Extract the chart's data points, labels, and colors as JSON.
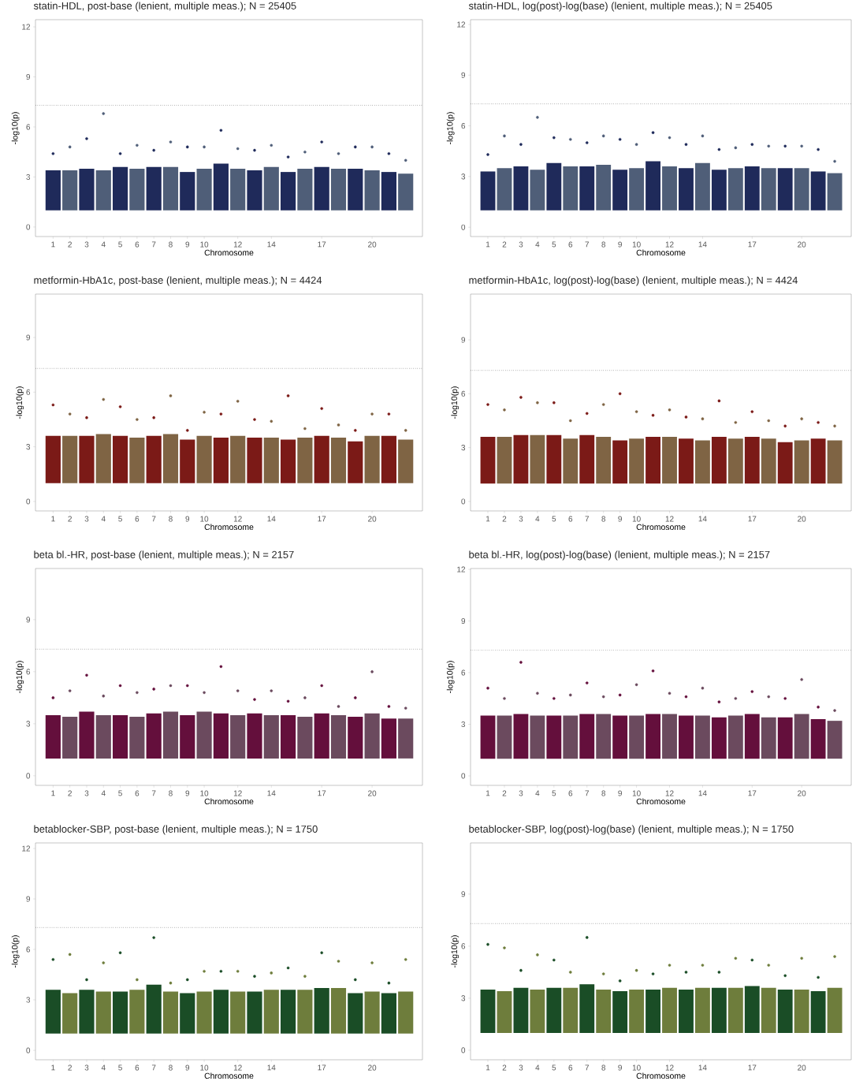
{
  "chart_data": [
    {
      "type": "bar",
      "title": "statin-HDL, post-base (lenient, multiple meas.); N = 25405",
      "xlabel": "Chromosome",
      "ylabel": "-log10(p)",
      "categories": [
        "1",
        "2",
        "3",
        "4",
        "5",
        "6",
        "7",
        "8",
        "9",
        "10",
        null,
        "12",
        null,
        "14",
        null,
        null,
        "17",
        null,
        null,
        "20",
        null,
        null
      ],
      "ylim": [
        -0.57,
        12.43
      ],
      "yticks": [
        0,
        3,
        6,
        9,
        12
      ],
      "ref_lines": [
        {
          "axis": "y",
          "value": 7.3,
          "line_style": "dotted",
          "color": "#333333"
        }
      ],
      "series": [
        {
          "type": "bar",
          "base": [
            1,
            1,
            1,
            1,
            1,
            1,
            1,
            1,
            1,
            1,
            1,
            1,
            1,
            1,
            1,
            1,
            1,
            1,
            1,
            1,
            1,
            1
          ],
          "values": [
            2.4,
            2.4,
            2.5,
            2.4,
            2.6,
            2.5,
            2.6,
            2.6,
            2.3,
            2.5,
            2.8,
            2.5,
            2.4,
            2.6,
            2.3,
            2.5,
            2.6,
            2.5,
            2.5,
            2.4,
            2.3,
            2.2
          ],
          "colors": [
            "#1f2a5a",
            "#4f5e78",
            "#1f2a5a",
            "#4f5e78",
            "#1f2a5a",
            "#4f5e78",
            "#1f2a5a",
            "#4f5e78",
            "#1f2a5a",
            "#4f5e78",
            "#1f2a5a",
            "#4f5e78",
            "#1f2a5a",
            "#4f5e78",
            "#1f2a5a",
            "#4f5e78",
            "#1f2a5a",
            "#4f5e78",
            "#1f2a5a",
            "#4f5e78",
            "#1f2a5a",
            "#4f5e78"
          ]
        },
        {
          "type": "scatter",
          "marker": "circle",
          "values": [
            4.4,
            4.8,
            5.3,
            6.8,
            4.4,
            4.9,
            4.6,
            5.1,
            4.8,
            4.8,
            5.8,
            4.7,
            4.6,
            4.9,
            4.2,
            4.5,
            5.1,
            4.4,
            4.8,
            4.8,
            4.4,
            4.0
          ],
          "colors": [
            "#1f2a5a",
            "#4f5e78",
            "#1f2a5a",
            "#4f5e78",
            "#1f2a5a",
            "#4f5e78",
            "#1f2a5a",
            "#4f5e78",
            "#1f2a5a",
            "#4f5e78",
            "#1f2a5a",
            "#4f5e78",
            "#1f2a5a",
            "#4f5e78",
            "#1f2a5a",
            "#4f5e78",
            "#1f2a5a",
            "#4f5e78",
            "#1f2a5a",
            "#4f5e78",
            "#1f2a5a",
            "#4f5e78"
          ]
        }
      ]
    },
    {
      "type": "bar",
      "title": "statin-HDL, log(post)-log(base) (lenient, multiple meas.); N = 25405",
      "xlabel": "Chromosome",
      "ylabel": "-log10(p)",
      "categories": [
        "1",
        "2",
        "3",
        "4",
        "5",
        "6",
        "7",
        "8",
        "9",
        "10",
        null,
        "12",
        null,
        "14",
        null,
        null,
        "17",
        null,
        null,
        "20",
        null,
        null
      ],
      "ylim": [
        -0.55,
        12.28
      ],
      "yticks": [
        0,
        3,
        6,
        9,
        12
      ],
      "ref_lines": [
        {
          "axis": "y",
          "value": 7.3,
          "line_style": "dotted",
          "color": "#333333"
        }
      ],
      "series": [
        {
          "type": "bar",
          "base": [
            1,
            1,
            1,
            1,
            1,
            1,
            1,
            1,
            1,
            1,
            1,
            1,
            1,
            1,
            1,
            1,
            1,
            1,
            1,
            1,
            1,
            1
          ],
          "values": [
            2.3,
            2.5,
            2.6,
            2.4,
            2.8,
            2.6,
            2.6,
            2.7,
            2.4,
            2.5,
            2.9,
            2.6,
            2.5,
            2.8,
            2.4,
            2.5,
            2.6,
            2.5,
            2.5,
            2.5,
            2.3,
            2.2
          ],
          "colors": [
            "#1f2a5a",
            "#4f5e78",
            "#1f2a5a",
            "#4f5e78",
            "#1f2a5a",
            "#4f5e78",
            "#1f2a5a",
            "#4f5e78",
            "#1f2a5a",
            "#4f5e78",
            "#1f2a5a",
            "#4f5e78",
            "#1f2a5a",
            "#4f5e78",
            "#1f2a5a",
            "#4f5e78",
            "#1f2a5a",
            "#4f5e78",
            "#1f2a5a",
            "#4f5e78",
            "#1f2a5a",
            "#4f5e78"
          ]
        },
        {
          "type": "scatter",
          "marker": "circle",
          "values": [
            4.3,
            5.4,
            4.9,
            6.5,
            5.3,
            5.2,
            5.0,
            5.4,
            5.2,
            4.9,
            5.6,
            5.3,
            4.9,
            5.4,
            4.6,
            4.7,
            4.9,
            4.8,
            4.8,
            4.8,
            4.6,
            3.9
          ],
          "colors": [
            "#1f2a5a",
            "#4f5e78",
            "#1f2a5a",
            "#4f5e78",
            "#1f2a5a",
            "#4f5e78",
            "#1f2a5a",
            "#4f5e78",
            "#1f2a5a",
            "#4f5e78",
            "#1f2a5a",
            "#4f5e78",
            "#1f2a5a",
            "#4f5e78",
            "#1f2a5a",
            "#4f5e78",
            "#1f2a5a",
            "#4f5e78",
            "#1f2a5a",
            "#4f5e78",
            "#1f2a5a",
            "#4f5e78"
          ]
        }
      ]
    },
    {
      "type": "bar",
      "title": "metformin-HbA1c, post-base (lenient, multiple meas.); N = 4424",
      "xlabel": "Chromosome",
      "ylabel": "-log10(p)",
      "categories": [
        "1",
        "2",
        "3",
        "4",
        "5",
        "6",
        "7",
        "8",
        "9",
        "10",
        null,
        "12",
        null,
        "14",
        null,
        null,
        "17",
        null,
        null,
        "20",
        null,
        null
      ],
      "ylim": [
        -0.52,
        11.38
      ],
      "yticks": [
        0,
        3,
        6,
        9
      ],
      "ref_lines": [
        {
          "axis": "y",
          "value": 7.3,
          "line_style": "dotted",
          "color": "#333333"
        }
      ],
      "series": [
        {
          "type": "bar",
          "base": [
            1,
            1,
            1,
            1,
            1,
            1,
            1,
            1,
            1,
            1,
            1,
            1,
            1,
            1,
            1,
            1,
            1,
            1,
            1,
            1,
            1,
            1
          ],
          "values": [
            2.6,
            2.6,
            2.6,
            2.7,
            2.6,
            2.5,
            2.6,
            2.7,
            2.4,
            2.6,
            2.5,
            2.6,
            2.5,
            2.5,
            2.4,
            2.5,
            2.6,
            2.5,
            2.3,
            2.6,
            2.6,
            2.4
          ],
          "colors": [
            "#7b1a17",
            "#7f6444",
            "#7b1a17",
            "#7f6444",
            "#7b1a17",
            "#7f6444",
            "#7b1a17",
            "#7f6444",
            "#7b1a17",
            "#7f6444",
            "#7b1a17",
            "#7f6444",
            "#7b1a17",
            "#7f6444",
            "#7b1a17",
            "#7f6444",
            "#7b1a17",
            "#7f6444",
            "#7b1a17",
            "#7f6444",
            "#7b1a17",
            "#7f6444"
          ]
        },
        {
          "type": "scatter",
          "marker": "circle",
          "values": [
            5.3,
            4.8,
            4.6,
            5.6,
            5.2,
            4.5,
            4.6,
            5.8,
            3.9,
            4.9,
            4.8,
            5.5,
            4.5,
            4.4,
            5.8,
            4.0,
            5.1,
            4.2,
            3.9,
            4.8,
            4.8,
            3.9
          ],
          "colors": [
            "#7b1a17",
            "#7f6444",
            "#7b1a17",
            "#7f6444",
            "#7b1a17",
            "#7f6444",
            "#7b1a17",
            "#7f6444",
            "#7b1a17",
            "#7f6444",
            "#7b1a17",
            "#7f6444",
            "#7b1a17",
            "#7f6444",
            "#7b1a17",
            "#7f6444",
            "#7b1a17",
            "#7f6444",
            "#7b1a17",
            "#7f6444",
            "#7b1a17",
            "#7f6444"
          ]
        }
      ]
    },
    {
      "type": "bar",
      "title": "metformin-HbA1c, log(post)-log(base) (lenient, multiple meas.); N = 4424",
      "xlabel": "Chromosome",
      "ylabel": "-log10(p)",
      "categories": [
        "1",
        "2",
        "3",
        "4",
        "5",
        "6",
        "7",
        "8",
        "9",
        "10",
        null,
        "12",
        null,
        "14",
        null,
        null,
        "17",
        null,
        null,
        "20",
        null,
        null
      ],
      "ylim": [
        -0.53,
        11.55
      ],
      "yticks": [
        0,
        3,
        6,
        9
      ],
      "ref_lines": [
        {
          "axis": "y",
          "value": 7.3,
          "line_style": "dotted",
          "color": "#333333"
        }
      ],
      "series": [
        {
          "type": "bar",
          "base": [
            1,
            1,
            1,
            1,
            1,
            1,
            1,
            1,
            1,
            1,
            1,
            1,
            1,
            1,
            1,
            1,
            1,
            1,
            1,
            1,
            1,
            1
          ],
          "values": [
            2.6,
            2.6,
            2.7,
            2.7,
            2.7,
            2.5,
            2.7,
            2.6,
            2.4,
            2.5,
            2.6,
            2.6,
            2.5,
            2.4,
            2.6,
            2.5,
            2.6,
            2.5,
            2.3,
            2.4,
            2.5,
            2.4
          ],
          "colors": [
            "#7b1a17",
            "#7f6444",
            "#7b1a17",
            "#7f6444",
            "#7b1a17",
            "#7f6444",
            "#7b1a17",
            "#7f6444",
            "#7b1a17",
            "#7f6444",
            "#7b1a17",
            "#7f6444",
            "#7b1a17",
            "#7f6444",
            "#7b1a17",
            "#7f6444",
            "#7b1a17",
            "#7f6444",
            "#7b1a17",
            "#7f6444",
            "#7b1a17",
            "#7f6444"
          ]
        },
        {
          "type": "scatter",
          "marker": "circle",
          "values": [
            5.4,
            5.1,
            5.8,
            5.5,
            5.5,
            4.5,
            4.9,
            5.4,
            6.0,
            5.0,
            4.8,
            5.1,
            4.7,
            4.6,
            5.6,
            4.4,
            5.0,
            4.5,
            4.2,
            4.6,
            4.4,
            4.2
          ],
          "colors": [
            "#7b1a17",
            "#7f6444",
            "#7b1a17",
            "#7f6444",
            "#7b1a17",
            "#7f6444",
            "#7b1a17",
            "#7f6444",
            "#7b1a17",
            "#7f6444",
            "#7b1a17",
            "#7f6444",
            "#7b1a17",
            "#7f6444",
            "#7b1a17",
            "#7f6444",
            "#7b1a17",
            "#7f6444",
            "#7b1a17",
            "#7f6444",
            "#7b1a17",
            "#7f6444"
          ]
        }
      ]
    },
    {
      "type": "bar",
      "title": "beta bl.-HR, post-base (lenient, multiple meas.); N = 2157",
      "xlabel": "Chromosome",
      "ylabel": "-log10(p)",
      "categories": [
        "1",
        "2",
        "3",
        "4",
        "5",
        "6",
        "7",
        "8",
        "9",
        "10",
        null,
        "12",
        null,
        "14",
        null,
        null,
        "17",
        null,
        null,
        "20",
        null,
        null
      ],
      "ylim": [
        -0.55,
        11.95
      ],
      "yticks": [
        0,
        3,
        6,
        9
      ],
      "ref_lines": [
        {
          "axis": "y",
          "value": 7.3,
          "line_style": "dotted",
          "color": "#333333"
        }
      ],
      "series": [
        {
          "type": "bar",
          "base": [
            1,
            1,
            1,
            1,
            1,
            1,
            1,
            1,
            1,
            1,
            1,
            1,
            1,
            1,
            1,
            1,
            1,
            1,
            1,
            1,
            1,
            1
          ],
          "values": [
            2.5,
            2.4,
            2.7,
            2.5,
            2.5,
            2.4,
            2.6,
            2.7,
            2.5,
            2.7,
            2.6,
            2.5,
            2.6,
            2.5,
            2.5,
            2.4,
            2.6,
            2.5,
            2.4,
            2.6,
            2.3,
            2.3
          ],
          "colors": [
            "#640f3c",
            "#6b4a5e",
            "#640f3c",
            "#6b4a5e",
            "#640f3c",
            "#6b4a5e",
            "#640f3c",
            "#6b4a5e",
            "#640f3c",
            "#6b4a5e",
            "#640f3c",
            "#6b4a5e",
            "#640f3c",
            "#6b4a5e",
            "#640f3c",
            "#6b4a5e",
            "#640f3c",
            "#6b4a5e",
            "#640f3c",
            "#6b4a5e",
            "#640f3c",
            "#6b4a5e"
          ]
        },
        {
          "type": "scatter",
          "marker": "circle",
          "values": [
            4.5,
            4.9,
            5.8,
            4.6,
            5.2,
            4.8,
            5.0,
            5.2,
            5.2,
            4.8,
            6.3,
            4.9,
            4.4,
            4.9,
            4.3,
            4.5,
            5.2,
            4.0,
            4.5,
            6.0,
            4.0,
            3.9
          ],
          "colors": [
            "#640f3c",
            "#6b4a5e",
            "#640f3c",
            "#6b4a5e",
            "#640f3c",
            "#6b4a5e",
            "#640f3c",
            "#6b4a5e",
            "#640f3c",
            "#6b4a5e",
            "#640f3c",
            "#6b4a5e",
            "#640f3c",
            "#6b4a5e",
            "#640f3c",
            "#6b4a5e",
            "#640f3c",
            "#6b4a5e",
            "#640f3c",
            "#6b4a5e",
            "#640f3c",
            "#6b4a5e"
          ]
        }
      ]
    },
    {
      "type": "bar",
      "title": "beta bl.-HR, log(post)-log(base) (lenient, multiple meas.); N = 2157",
      "xlabel": "Chromosome",
      "ylabel": "-log10(p)",
      "categories": [
        "1",
        "2",
        "3",
        "4",
        "5",
        "6",
        "7",
        "8",
        "9",
        "10",
        null,
        "12",
        null,
        "14",
        null,
        null,
        "17",
        null,
        null,
        "20",
        null,
        null
      ],
      "ylim": [
        -0.55,
        12.05
      ],
      "yticks": [
        0,
        3,
        6,
        9,
        12
      ],
      "ref_lines": [
        {
          "axis": "y",
          "value": 7.3,
          "line_style": "dotted",
          "color": "#333333"
        }
      ],
      "series": [
        {
          "type": "bar",
          "base": [
            1,
            1,
            1,
            1,
            1,
            1,
            1,
            1,
            1,
            1,
            1,
            1,
            1,
            1,
            1,
            1,
            1,
            1,
            1,
            1,
            1,
            1
          ],
          "values": [
            2.5,
            2.5,
            2.6,
            2.5,
            2.5,
            2.5,
            2.6,
            2.6,
            2.5,
            2.5,
            2.6,
            2.6,
            2.5,
            2.5,
            2.4,
            2.5,
            2.6,
            2.4,
            2.4,
            2.6,
            2.3,
            2.2
          ],
          "colors": [
            "#640f3c",
            "#6b4a5e",
            "#640f3c",
            "#6b4a5e",
            "#640f3c",
            "#6b4a5e",
            "#640f3c",
            "#6b4a5e",
            "#640f3c",
            "#6b4a5e",
            "#640f3c",
            "#6b4a5e",
            "#640f3c",
            "#6b4a5e",
            "#640f3c",
            "#6b4a5e",
            "#640f3c",
            "#6b4a5e",
            "#640f3c",
            "#6b4a5e",
            "#640f3c",
            "#6b4a5e"
          ]
        },
        {
          "type": "scatter",
          "marker": "circle",
          "values": [
            5.1,
            4.5,
            6.6,
            4.8,
            4.5,
            4.7,
            5.4,
            4.6,
            4.7,
            5.3,
            6.1,
            4.8,
            4.6,
            5.1,
            4.3,
            4.5,
            4.9,
            4.6,
            4.5,
            5.6,
            4.0,
            3.8
          ],
          "colors": [
            "#640f3c",
            "#6b4a5e",
            "#640f3c",
            "#6b4a5e",
            "#640f3c",
            "#6b4a5e",
            "#640f3c",
            "#6b4a5e",
            "#640f3c",
            "#6b4a5e",
            "#640f3c",
            "#6b4a5e",
            "#640f3c",
            "#6b4a5e",
            "#640f3c",
            "#6b4a5e",
            "#640f3c",
            "#6b4a5e",
            "#640f3c",
            "#6b4a5e",
            "#640f3c",
            "#6b4a5e"
          ]
        }
      ]
    },
    {
      "type": "bar",
      "title": "betablocker-SBP, post-base (lenient, multiple meas.); N = 1750",
      "xlabel": "Chromosome",
      "ylabel": "-log10(p)",
      "categories": [
        "1",
        "2",
        "3",
        "4",
        "5",
        "6",
        "7",
        "8",
        "9",
        "10",
        null,
        "12",
        null,
        "14",
        null,
        null,
        "17",
        null,
        null,
        "20",
        null,
        null
      ],
      "ylim": [
        -0.56,
        12.33
      ],
      "yticks": [
        0,
        3,
        6,
        9,
        12
      ],
      "ref_lines": [
        {
          "axis": "y",
          "value": 7.3,
          "line_style": "dotted",
          "color": "#333333"
        }
      ],
      "series": [
        {
          "type": "bar",
          "base": [
            1,
            1,
            1,
            1,
            1,
            1,
            1,
            1,
            1,
            1,
            1,
            1,
            1,
            1,
            1,
            1,
            1,
            1,
            1,
            1,
            1,
            1
          ],
          "values": [
            2.6,
            2.4,
            2.6,
            2.5,
            2.5,
            2.6,
            2.9,
            2.5,
            2.4,
            2.5,
            2.6,
            2.5,
            2.5,
            2.6,
            2.6,
            2.6,
            2.7,
            2.7,
            2.4,
            2.5,
            2.4,
            2.5
          ],
          "colors": [
            "#1a4d26",
            "#6e7d3c",
            "#1a4d26",
            "#6e7d3c",
            "#1a4d26",
            "#6e7d3c",
            "#1a4d26",
            "#6e7d3c",
            "#1a4d26",
            "#6e7d3c",
            "#1a4d26",
            "#6e7d3c",
            "#1a4d26",
            "#6e7d3c",
            "#1a4d26",
            "#6e7d3c",
            "#1a4d26",
            "#6e7d3c",
            "#1a4d26",
            "#6e7d3c",
            "#1a4d26",
            "#6e7d3c"
          ]
        },
        {
          "type": "scatter",
          "marker": "circle",
          "values": [
            5.4,
            5.7,
            4.2,
            5.2,
            5.8,
            4.2,
            6.7,
            4.0,
            4.2,
            4.7,
            4.7,
            4.7,
            4.4,
            4.6,
            4.9,
            4.4,
            5.8,
            5.3,
            4.2,
            5.2,
            4.0,
            5.4
          ],
          "colors": [
            "#1a4d26",
            "#6e7d3c",
            "#1a4d26",
            "#6e7d3c",
            "#1a4d26",
            "#6e7d3c",
            "#1a4d26",
            "#6e7d3c",
            "#1a4d26",
            "#6e7d3c",
            "#1a4d26",
            "#6e7d3c",
            "#1a4d26",
            "#6e7d3c",
            "#1a4d26",
            "#6e7d3c",
            "#1a4d26",
            "#6e7d3c",
            "#1a4d26",
            "#6e7d3c",
            "#1a4d26",
            "#6e7d3c"
          ]
        }
      ]
    },
    {
      "type": "bar",
      "title": "betablocker-SBP, log(post)-log(base) (lenient, multiple meas.); N = 1750",
      "xlabel": "Chromosome",
      "ylabel": "-log10(p)",
      "categories": [
        "1",
        "2",
        "3",
        "4",
        "5",
        "6",
        "7",
        "8",
        "9",
        "10",
        null,
        "12",
        null,
        "14",
        null,
        null,
        "17",
        null,
        null,
        "20",
        null,
        null
      ],
      "ylim": [
        -0.55,
        11.95
      ],
      "yticks": [
        0,
        3,
        6,
        9
      ],
      "ref_lines": [
        {
          "axis": "y",
          "value": 7.3,
          "line_style": "dotted",
          "color": "#333333"
        }
      ],
      "series": [
        {
          "type": "bar",
          "base": [
            1,
            1,
            1,
            1,
            1,
            1,
            1,
            1,
            1,
            1,
            1,
            1,
            1,
            1,
            1,
            1,
            1,
            1,
            1,
            1,
            1,
            1
          ],
          "values": [
            2.5,
            2.4,
            2.6,
            2.5,
            2.6,
            2.6,
            2.8,
            2.5,
            2.4,
            2.5,
            2.5,
            2.6,
            2.5,
            2.6,
            2.6,
            2.6,
            2.7,
            2.6,
            2.5,
            2.5,
            2.4,
            2.6
          ],
          "colors": [
            "#1a4d26",
            "#6e7d3c",
            "#1a4d26",
            "#6e7d3c",
            "#1a4d26",
            "#6e7d3c",
            "#1a4d26",
            "#6e7d3c",
            "#1a4d26",
            "#6e7d3c",
            "#1a4d26",
            "#6e7d3c",
            "#1a4d26",
            "#6e7d3c",
            "#1a4d26",
            "#6e7d3c",
            "#1a4d26",
            "#6e7d3c",
            "#1a4d26",
            "#6e7d3c",
            "#1a4d26",
            "#6e7d3c"
          ]
        },
        {
          "type": "scatter",
          "marker": "circle",
          "values": [
            6.1,
            5.9,
            4.6,
            5.5,
            5.2,
            4.5,
            6.5,
            4.4,
            4.0,
            4.6,
            4.4,
            4.9,
            4.5,
            4.9,
            4.5,
            5.3,
            5.2,
            4.9,
            4.3,
            5.3,
            4.2,
            5.4
          ],
          "colors": [
            "#1a4d26",
            "#6e7d3c",
            "#1a4d26",
            "#6e7d3c",
            "#1a4d26",
            "#6e7d3c",
            "#1a4d26",
            "#6e7d3c",
            "#1a4d26",
            "#6e7d3c",
            "#1a4d26",
            "#6e7d3c",
            "#1a4d26",
            "#6e7d3c",
            "#1a4d26",
            "#6e7d3c",
            "#1a4d26",
            "#6e7d3c",
            "#1a4d26",
            "#6e7d3c",
            "#1a4d26",
            "#6e7d3c"
          ]
        }
      ]
    }
  ]
}
